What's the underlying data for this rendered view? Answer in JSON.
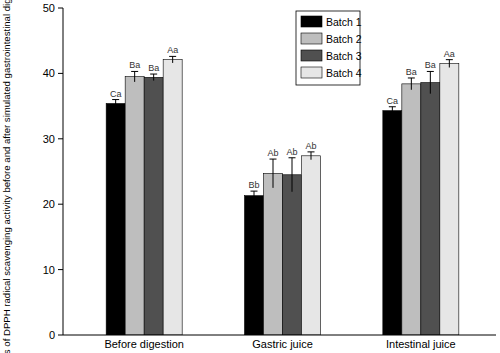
{
  "chart_data": {
    "type": "bar",
    "y_label": "Changes of DPPH radical scavenging activity before and after simulated gastrointestinal digestion (%)",
    "categories": [
      "Before digestion",
      "Gastric juice",
      "Intestinal juice"
    ],
    "series": [
      {
        "name": "Batch 1",
        "color": "#000000",
        "values": [
          35.4,
          21.3,
          34.3
        ],
        "errors": [
          0.6,
          0.7,
          0.6
        ],
        "significance": [
          "Ca",
          "Bb",
          "Ca"
        ]
      },
      {
        "name": "Batch 2",
        "color": "#bebebe",
        "values": [
          39.5,
          24.7,
          38.4
        ],
        "errors": [
          0.8,
          2.2,
          0.9
        ],
        "significance": [
          "Ba",
          "Ab",
          "Ba"
        ]
      },
      {
        "name": "Batch 3",
        "color": "#505050",
        "values": [
          39.4,
          24.5,
          38.6
        ],
        "errors": [
          0.5,
          2.6,
          1.7
        ],
        "significance": [
          "Ba",
          "Ab",
          "Ba"
        ]
      },
      {
        "name": "Batch 4",
        "color": "#e6e6e6",
        "values": [
          42.1,
          27.4,
          41.5
        ],
        "errors": [
          0.5,
          0.6,
          0.6
        ],
        "significance": [
          "Aa",
          "Ab",
          "Aa"
        ]
      }
    ],
    "ylim": [
      0,
      50
    ],
    "yticks": [
      0,
      10,
      20,
      30,
      40,
      50
    ],
    "grid": false,
    "legend": "upper right"
  }
}
